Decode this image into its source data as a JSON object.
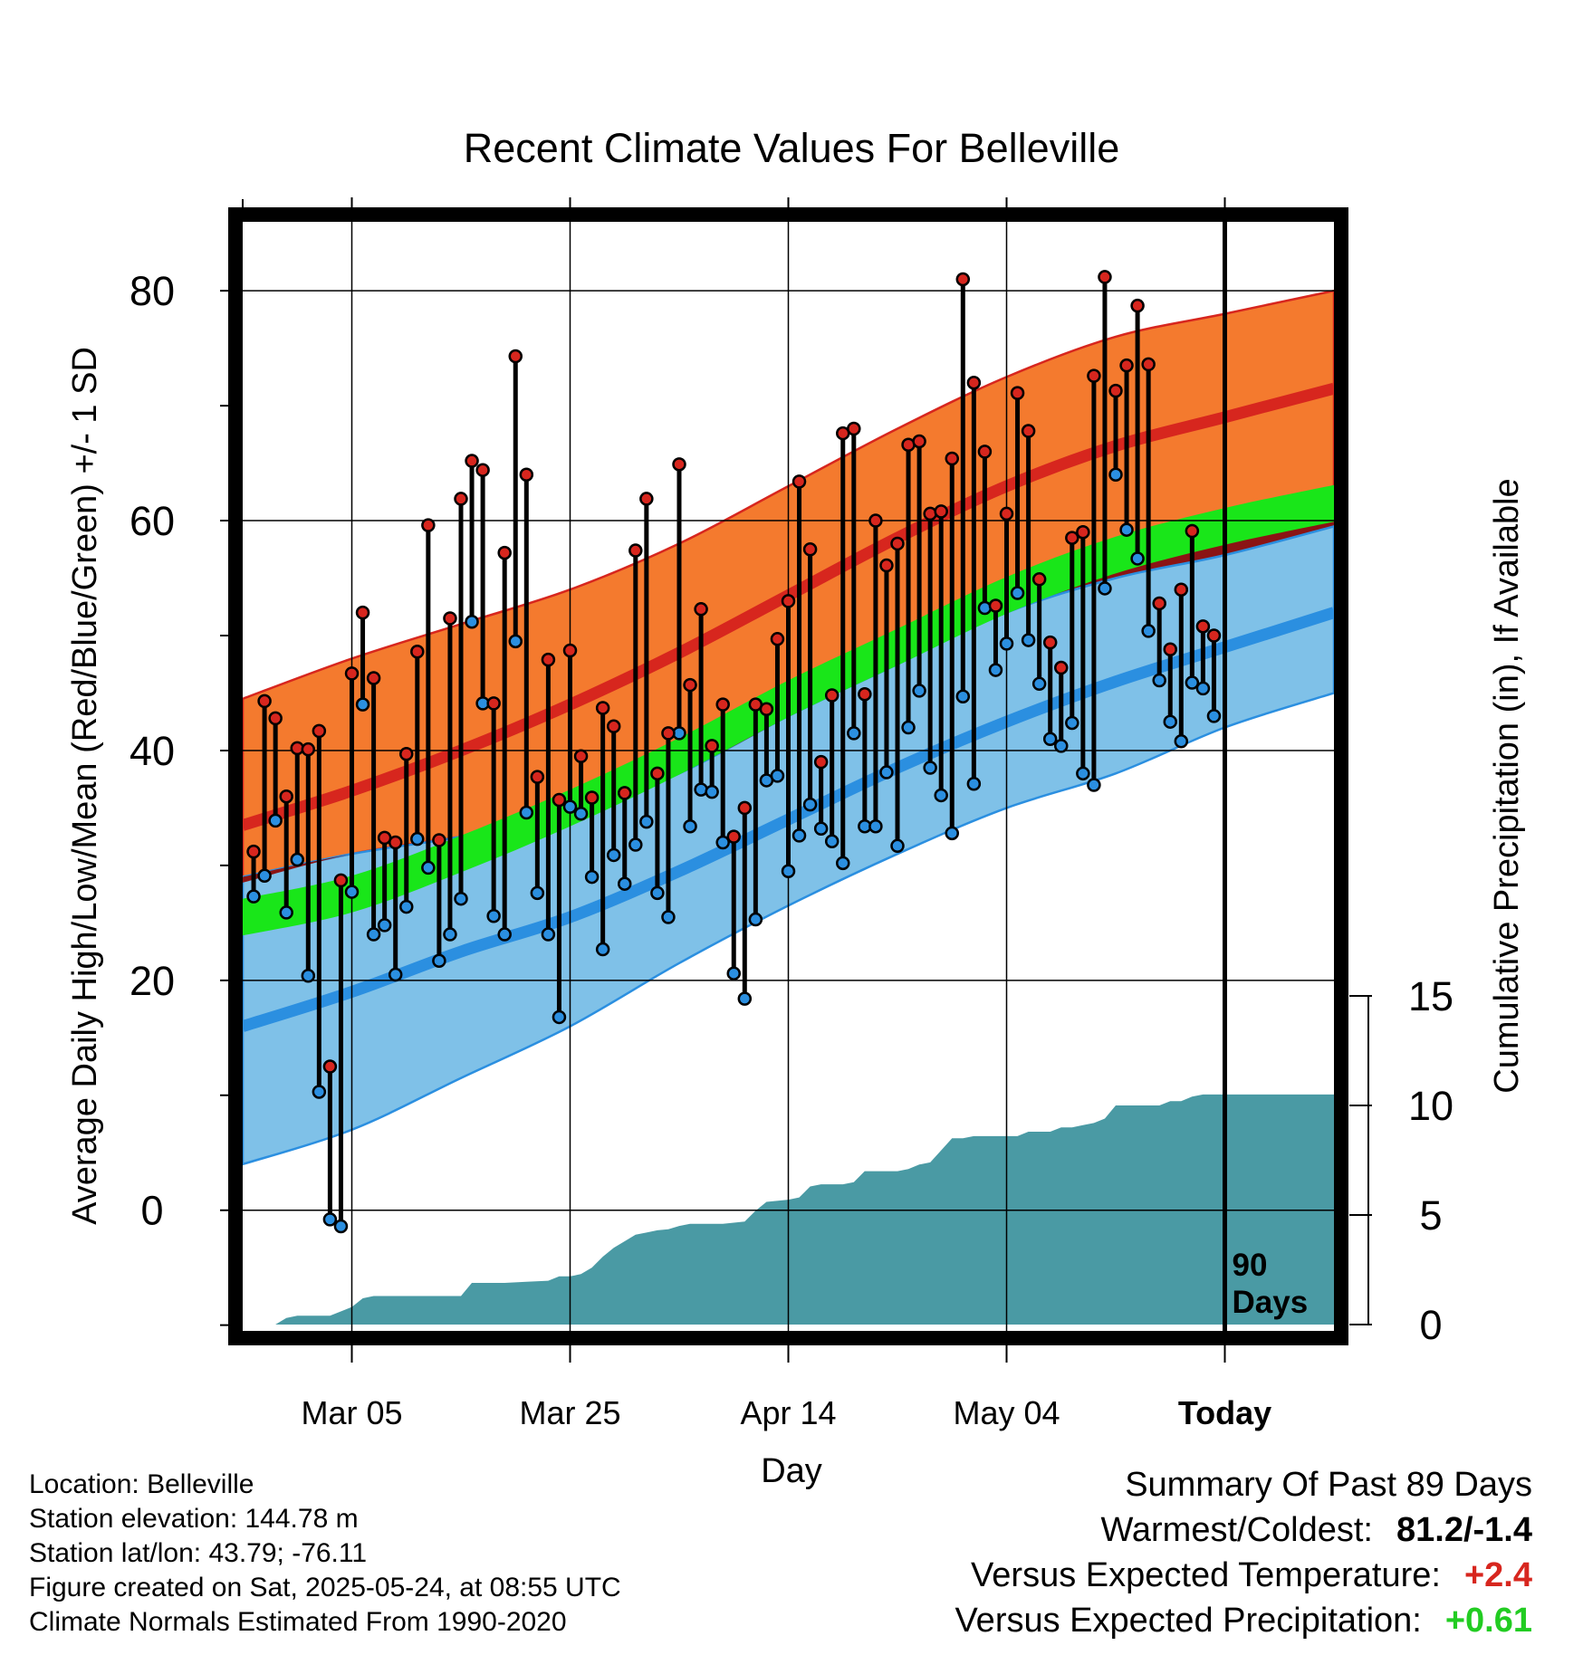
{
  "chart_data": {
    "type": "line",
    "title": "Recent Climate Values For Belleville",
    "xlabel": "Day",
    "ylabel": "Average Daily High/Low/Mean (Red/Blue/Green) +/- 1 SD",
    "ylabel_right": "Cumulative Precipitation (in), If Available",
    "xlim": [
      -10,
      90
    ],
    "ylim": [
      -10.5,
      86
    ],
    "ylim_right": [
      0,
      15
    ],
    "y_ticks": [
      0,
      20,
      40,
      60,
      80
    ],
    "y_ticks_right": [
      0,
      5,
      10,
      15
    ],
    "x_ticks": [
      {
        "day": 0,
        "label": "Mar 05"
      },
      {
        "day": 20,
        "label": "Mar 25"
      },
      {
        "day": 40,
        "label": "Apr 14"
      },
      {
        "day": 60,
        "label": "May 04"
      },
      {
        "day": 80,
        "label": "Today"
      }
    ],
    "today_marker": {
      "day": 80,
      "label_line1": "90",
      "label_line2": "Days"
    },
    "grid": true,
    "normals": {
      "days": [
        -10,
        0,
        10,
        20,
        30,
        40,
        50,
        60,
        70,
        80,
        90
      ],
      "high_mean": [
        33.5,
        36.5,
        40.0,
        44.0,
        48.5,
        53.5,
        58.5,
        63.0,
        66.5,
        69.0,
        71.5
      ],
      "high_upper": [
        44.5,
        48.0,
        51.0,
        54.0,
        58.0,
        63.0,
        68.0,
        72.5,
        76.0,
        78.0,
        80.0
      ],
      "high_lower": [
        28.5,
        31.0,
        32.5,
        34.0,
        38.0,
        43.0,
        49.0,
        54.0,
        57.5,
        60.0,
        63.0
      ],
      "mean_mean": [
        25.5,
        27.5,
        31.0,
        35.0,
        39.5,
        44.5,
        49.0,
        53.5,
        57.0,
        59.5,
        61.5
      ],
      "mean_band_width": 1.6,
      "low_mean": [
        16.0,
        19.0,
        22.5,
        25.5,
        29.5,
        34.0,
        38.5,
        42.5,
        46.0,
        49.0,
        52.0
      ],
      "low_upper": [
        29.0,
        31.0,
        32.5,
        34.5,
        38.0,
        43.0,
        47.5,
        52.0,
        55.0,
        57.0,
        59.5
      ],
      "low_lower": [
        4.0,
        7.0,
        11.5,
        16.0,
        21.5,
        26.5,
        31.0,
        35.0,
        38.0,
        42.0,
        45.0
      ]
    },
    "series": [
      {
        "name": "Daily High",
        "color": "#d7261e",
        "x": [
          -9,
          -8,
          -7,
          -6,
          -5,
          -4,
          -3,
          -2,
          -1,
          0,
          1,
          2,
          3,
          4,
          5,
          6,
          7,
          8,
          9,
          10,
          11,
          12,
          13,
          14,
          15,
          16,
          17,
          18,
          19,
          20,
          21,
          22,
          23,
          24,
          25,
          26,
          27,
          28,
          29,
          30,
          31,
          32,
          33,
          34,
          35,
          36,
          37,
          38,
          39,
          40,
          41,
          42,
          43,
          44,
          45,
          46,
          47,
          48,
          49,
          50,
          51,
          52,
          53,
          54,
          55,
          56,
          57,
          58,
          59,
          60,
          61,
          62,
          63,
          64,
          65,
          66,
          67,
          68,
          69,
          70,
          71,
          72,
          73,
          74,
          75,
          76,
          77,
          78,
          79
        ],
        "values": [
          31.2,
          44.3,
          42.8,
          36.0,
          40.2,
          40.1,
          41.7,
          12.5,
          28.7,
          46.7,
          52.0,
          46.3,
          32.4,
          32.0,
          39.7,
          48.6,
          59.6,
          32.2,
          51.5,
          61.9,
          65.2,
          64.4,
          44.1,
          57.2,
          74.3,
          64.0,
          37.7,
          47.9,
          35.7,
          48.7,
          39.5,
          35.9,
          43.7,
          42.1,
          36.3,
          57.4,
          61.9,
          38.0,
          41.5,
          64.9,
          45.7,
          52.3,
          40.4,
          44.0,
          32.5,
          35.0,
          44.0,
          43.6,
          49.7,
          53.0,
          63.4,
          57.5,
          39.0,
          44.8,
          67.6,
          68.0,
          44.9,
          60.0,
          56.1,
          58.0,
          66.6,
          66.9,
          60.6,
          60.8,
          65.4,
          81.0,
          72.0,
          66.0,
          52.6,
          60.6,
          71.1,
          67.8,
          54.9,
          49.4,
          47.2,
          58.5,
          59.0,
          72.6,
          81.2,
          71.3,
          73.5,
          78.7,
          73.6,
          52.8,
          48.8,
          54.0,
          59.1,
          50.8,
          50.0
        ]
      },
      {
        "name": "Daily Low",
        "color": "#2b8fe0",
        "x": [
          -9,
          -8,
          -7,
          -6,
          -5,
          -4,
          -3,
          -2,
          -1,
          0,
          1,
          2,
          3,
          4,
          5,
          6,
          7,
          8,
          9,
          10,
          11,
          12,
          13,
          14,
          15,
          16,
          17,
          18,
          19,
          20,
          21,
          22,
          23,
          24,
          25,
          26,
          27,
          28,
          29,
          30,
          31,
          32,
          33,
          34,
          35,
          36,
          37,
          38,
          39,
          40,
          41,
          42,
          43,
          44,
          45,
          46,
          47,
          48,
          49,
          50,
          51,
          52,
          53,
          54,
          55,
          56,
          57,
          58,
          59,
          60,
          61,
          62,
          63,
          64,
          65,
          66,
          67,
          68,
          69,
          70,
          71,
          72,
          73,
          74,
          75,
          76,
          77,
          78,
          79
        ],
        "values": [
          27.3,
          29.1,
          33.9,
          25.9,
          30.5,
          20.4,
          10.3,
          -0.8,
          -1.4,
          27.7,
          44.0,
          24.0,
          24.8,
          20.5,
          26.4,
          32.3,
          29.8,
          21.7,
          24.0,
          27.1,
          51.2,
          44.1,
          25.6,
          24.0,
          49.5,
          34.6,
          27.6,
          24.0,
          16.8,
          35.1,
          34.5,
          29.0,
          22.7,
          30.9,
          28.4,
          31.8,
          33.8,
          27.6,
          25.5,
          41.5,
          33.4,
          36.6,
          36.4,
          32.0,
          20.6,
          18.4,
          25.3,
          37.4,
          37.8,
          29.5,
          32.6,
          35.3,
          33.2,
          32.1,
          30.2,
          41.5,
          33.4,
          33.4,
          38.1,
          31.7,
          42.0,
          45.2,
          38.5,
          36.1,
          32.8,
          44.7,
          37.1,
          52.4,
          47.0,
          49.3,
          53.7,
          49.6,
          45.8,
          41.0,
          40.4,
          42.4,
          38.0,
          37.0,
          54.1,
          64.0,
          59.2,
          56.7,
          50.4,
          46.1,
          42.5,
          40.8,
          45.9,
          45.4,
          43.0
        ]
      },
      {
        "name": "Cumulative Precipitation",
        "color": "#4a9aa4",
        "x": [
          -10,
          -7,
          -6,
          -5,
          -2,
          0,
          1,
          2,
          5,
          10,
          11,
          14,
          16,
          18,
          19,
          20,
          21,
          22,
          23,
          24,
          25,
          26,
          27,
          28,
          29,
          30,
          31,
          32,
          33,
          34,
          35,
          36,
          37,
          38,
          40,
          41,
          42,
          43,
          44,
          45,
          46,
          47,
          48,
          49,
          50,
          51,
          52,
          53,
          55,
          56,
          57,
          58,
          59,
          60,
          61,
          62,
          63,
          64,
          65,
          66,
          67,
          68,
          69,
          70,
          71,
          72,
          73,
          74,
          75,
          76,
          77,
          78,
          79,
          80,
          90
        ],
        "values": [
          0.0,
          0.0,
          0.3,
          0.4,
          0.4,
          0.8,
          1.2,
          1.3,
          1.3,
          1.3,
          1.9,
          1.9,
          1.95,
          2.0,
          2.2,
          2.2,
          2.3,
          2.6,
          3.1,
          3.5,
          3.8,
          4.1,
          4.2,
          4.3,
          4.35,
          4.5,
          4.6,
          4.6,
          4.6,
          4.6,
          4.65,
          4.7,
          5.2,
          5.6,
          5.7,
          5.8,
          6.3,
          6.4,
          6.4,
          6.4,
          6.5,
          7.0,
          7.0,
          7.0,
          7.0,
          7.1,
          7.3,
          7.4,
          8.5,
          8.5,
          8.6,
          8.6,
          8.6,
          8.6,
          8.6,
          8.8,
          8.8,
          8.8,
          9.0,
          9.0,
          9.1,
          9.2,
          9.4,
          10.0,
          10.0,
          10.0,
          10.0,
          10.0,
          10.2,
          10.2,
          10.4,
          10.5,
          10.5,
          10.5,
          10.5
        ]
      }
    ]
  },
  "footer": {
    "location": "Location: Belleville",
    "elevation": "Station elevation: 144.78 m",
    "latlon": "Station lat/lon: 43.79; -76.11",
    "created": "Figure created on Sat, 2025-05-24, at 08:55 UTC",
    "normals": "Climate Normals Estimated From 1990-2020"
  },
  "summary": {
    "title": "Summary Of Past 89 Days",
    "warmest_label": "Warmest/Coldest:",
    "warmest_value": "81.2/-1.4",
    "temp_label": "Versus Expected Temperature:",
    "temp_value": "+2.4",
    "prec_label": "Versus Expected Precipitation:",
    "prec_value": "+0.61"
  },
  "colors": {
    "high_band": "#f47a2e",
    "high_line": "#d7261e",
    "mean_band": "#19e619",
    "overlap_band": "#8b1414",
    "low_band": "#7fc1e8",
    "low_line": "#2b8fe0",
    "precip": "#4a9aa4",
    "temp_delta": "#d7261e",
    "prec_delta": "#22cc22"
  }
}
